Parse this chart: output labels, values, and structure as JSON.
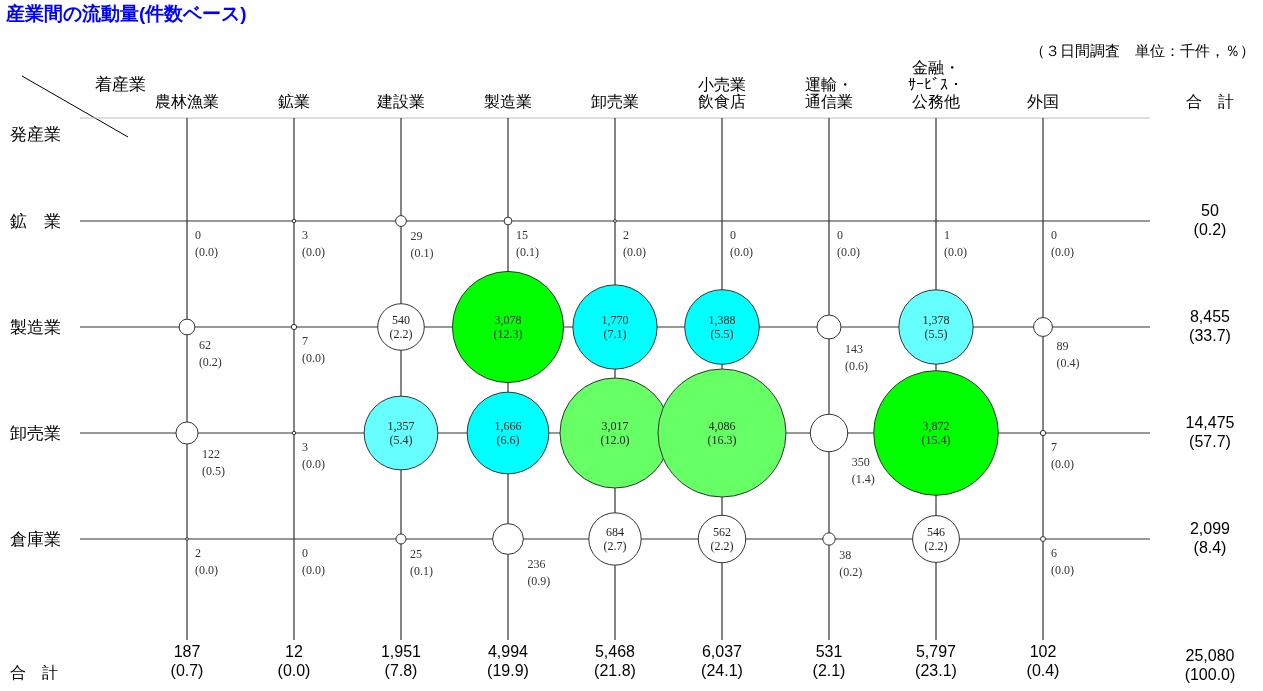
{
  "chart_data": {
    "type": "heatmap",
    "title": "産業間の流動量(件数ベース)",
    "subtitle": "（３日間調査　単位：千件，％）",
    "xlabel": "着産業",
    "ylabel": "発産業",
    "y2label": "合　計",
    "grid": true,
    "data_labels": true,
    "categories": [
      "農林漁業",
      "鉱業",
      "建設業",
      "製造業",
      "卸売業",
      "小売業飲食店",
      "運輸・通信業",
      "金融・ｻｰﾋﾞｽ・公務他",
      "外国"
    ],
    "y_categories": [
      "鉱　業",
      "製造業",
      "卸売業",
      "倉庫業"
    ],
    "y2_categories": [
      "50 (0.2)",
      "8,455 (33.7)",
      "14,475 (57.7)",
      "2,099 (8.4)"
    ],
    "cells": [
      [
        0,
        3,
        29,
        15,
        2,
        0,
        0,
        1,
        0
      ],
      [
        62,
        7,
        540,
        3078,
        1770,
        1388,
        143,
        1378,
        89
      ],
      [
        122,
        3,
        1357,
        1666,
        3017,
        4086,
        350,
        3872,
        7
      ],
      [
        2,
        0,
        25,
        236,
        684,
        562,
        38,
        546,
        6
      ]
    ],
    "cell_labels": [
      [
        "0",
        "3",
        "29",
        "15",
        "2",
        "0",
        "0",
        "1",
        "0"
      ],
      [
        "62",
        "7",
        "540",
        "3,078",
        "1,770",
        "1,388",
        "143",
        "1,378",
        "89"
      ],
      [
        "122",
        "3",
        "1,357",
        "1,666",
        "3,017",
        "4,086",
        "350",
        "3,872",
        "7"
      ],
      [
        "2",
        "0",
        "25",
        "236",
        "684",
        "562",
        "38",
        "546",
        "6"
      ]
    ],
    "colors": [
      [
        "#ffffff",
        "#ffffff",
        "#ffffff",
        "#ffffff",
        "#ffffff",
        "#ffffff",
        "#ffffff",
        "#ffffff",
        "#ffffff"
      ],
      [
        "#ffffff",
        "#ffffff",
        "#ffffff",
        "#00ff00",
        "#00ffff",
        "#00ffff",
        "#ffffff",
        "#66ffff",
        "#ffffff"
      ],
      [
        "#ffffff",
        "#ffffff",
        "#66ffff",
        "#00ffff",
        "#66ff66",
        "#66ff66",
        "#ffffff",
        "#00ff00",
        "#ffffff"
      ],
      [
        "#ffffff",
        "#ffffff",
        "#ffffff",
        "#ffffff",
        "#ffffff",
        "#ffffff",
        "#ffffff",
        "#ffffff",
        "#ffffff"
      ]
    ],
    "totals": [
      "187 (0.7)",
      "12 (0.0)",
      "1,951 (7.8)",
      "4,994 (19.9)",
      "5,468 (21.8)",
      "6,037 (24.1)",
      "531 (2.1)",
      "5,797 (23.1)",
      "102 (0.4)"
    ],
    "annotations": [
      "合　計",
      "25,080 (100.0)",
      "(0.0)",
      "(0.0)",
      "(0.1)",
      "(0.1)",
      "(0.0)",
      "(0.0)",
      "(0.0)",
      "(0.0)",
      "(0.0)",
      "(0.2)",
      "(0.0)",
      "(2.2)",
      "(12.3)",
      "(7.1)",
      "(5.5)",
      "(0.6)",
      "(5.5)",
      "(0.4)",
      "(0.5)",
      "(0.0)",
      "(5.4)",
      "(6.6)",
      "(12.0)",
      "(16.3)",
      "(1.4)",
      "(15.4)",
      "(0.0)",
      "(0.0)",
      "(0.0)",
      "(0.1)",
      "(0.9)",
      "(2.7)",
      "(2.2)",
      "(0.2)",
      "(2.2)",
      "(0.0)"
    ]
  }
}
